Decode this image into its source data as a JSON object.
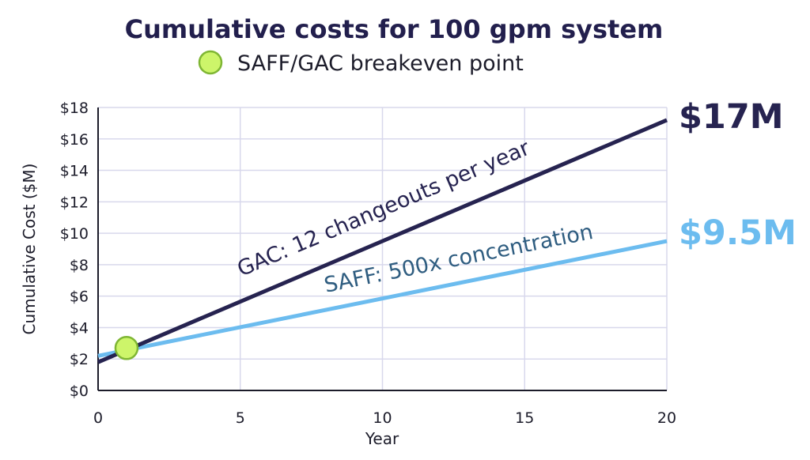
{
  "chart_data": {
    "type": "line",
    "title": "Cumulative costs for 100 gpm system",
    "xlabel": "Year",
    "ylabel": "Cumulative Cost ($M)",
    "xlim": [
      0,
      20
    ],
    "ylim": [
      0,
      18
    ],
    "x_ticks": [
      0,
      5,
      10,
      15,
      20
    ],
    "y_ticks": [
      0,
      2,
      4,
      6,
      8,
      10,
      12,
      14,
      16,
      18
    ],
    "y_tick_labels": [
      "$0",
      "$2",
      "$4",
      "$6",
      "$8",
      "$10",
      "$12",
      "$14",
      "$16",
      "$18"
    ],
    "grid": true,
    "legend": {
      "position": "top",
      "label": "SAFF/GAC breakeven point",
      "marker_color": "#cdf56a"
    },
    "series": [
      {
        "name": "GAC: 12 changeouts per year",
        "color": "#262350",
        "x": [
          0,
          20
        ],
        "y": [
          1.8,
          17.2
        ],
        "end_label": "$17M"
      },
      {
        "name": "SAFF: 500x concentration",
        "color": "#6cbcef",
        "label_color": "#2f5d80",
        "x": [
          0,
          20
        ],
        "y": [
          2.2,
          9.5
        ],
        "end_label": "$9.5M"
      }
    ],
    "points": [
      {
        "name": "SAFF/GAC breakeven point",
        "x": 1,
        "y": 2.7,
        "color": "#cdf56a"
      }
    ]
  }
}
